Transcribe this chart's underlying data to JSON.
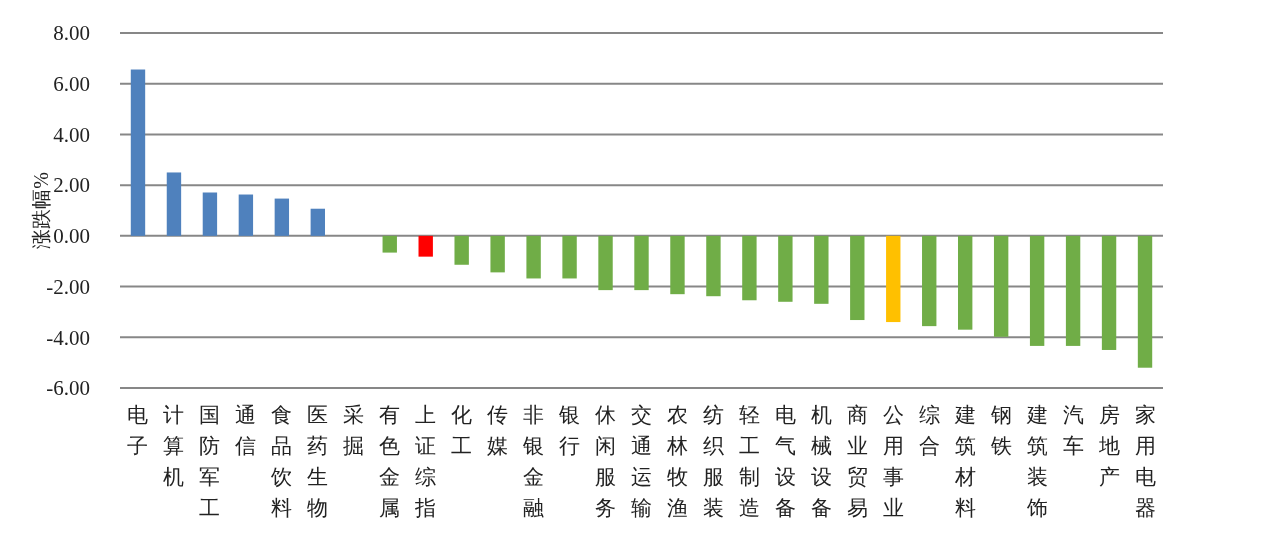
{
  "chart_data": {
    "type": "bar",
    "ylabel": "涨跌幅%",
    "categories": [
      "电子",
      "计算机",
      "国防军工",
      "通信",
      "食品饮料",
      "医药生物",
      "采掘",
      "有色金属",
      "上证综指",
      "化工",
      "传媒",
      "非银金融",
      "银行",
      "休闲服务",
      "交通运输",
      "农林牧渔",
      "纺织服装",
      "轻工制造",
      "电气设备",
      "机械设备",
      "商业贸易",
      "公用事业",
      "综合",
      "建筑材料",
      "钢铁",
      "建筑装饰",
      "汽车",
      "房地产",
      "家用电器"
    ],
    "values": [
      6.56,
      2.5,
      1.71,
      1.63,
      1.47,
      1.07,
      0,
      -0.66,
      -0.82,
      -1.14,
      -1.44,
      -1.68,
      -1.68,
      -2.14,
      -2.14,
      -2.3,
      -2.38,
      -2.54,
      -2.6,
      -2.68,
      -3.32,
      -3.4,
      -3.56,
      -3.7,
      -3.98,
      -4.34,
      -4.34,
      -4.5,
      -5.2
    ],
    "colors": [
      "#4f81bd",
      "#4f81bd",
      "#4f81bd",
      "#4f81bd",
      "#4f81bd",
      "#4f81bd",
      "#70ad47",
      "#70ad47",
      "#ff0000",
      "#70ad47",
      "#70ad47",
      "#70ad47",
      "#70ad47",
      "#70ad47",
      "#70ad47",
      "#70ad47",
      "#70ad47",
      "#70ad47",
      "#70ad47",
      "#70ad47",
      "#70ad47",
      "#ffc000",
      "#70ad47",
      "#70ad47",
      "#70ad47",
      "#70ad47",
      "#70ad47",
      "#70ad47",
      "#70ad47"
    ],
    "ylim": [
      -6,
      8
    ],
    "yticks": [
      {
        "value": -6,
        "label": "-6.00"
      },
      {
        "value": -4,
        "label": "-4.00"
      },
      {
        "value": -2,
        "label": "-2.00"
      },
      {
        "value": 0,
        "label": "0.00"
      },
      {
        "value": 2,
        "label": "2.00"
      },
      {
        "value": 4,
        "label": "4.00"
      },
      {
        "value": 6,
        "label": "6.00"
      },
      {
        "value": 8,
        "label": "8.00"
      }
    ],
    "grid": "y"
  }
}
